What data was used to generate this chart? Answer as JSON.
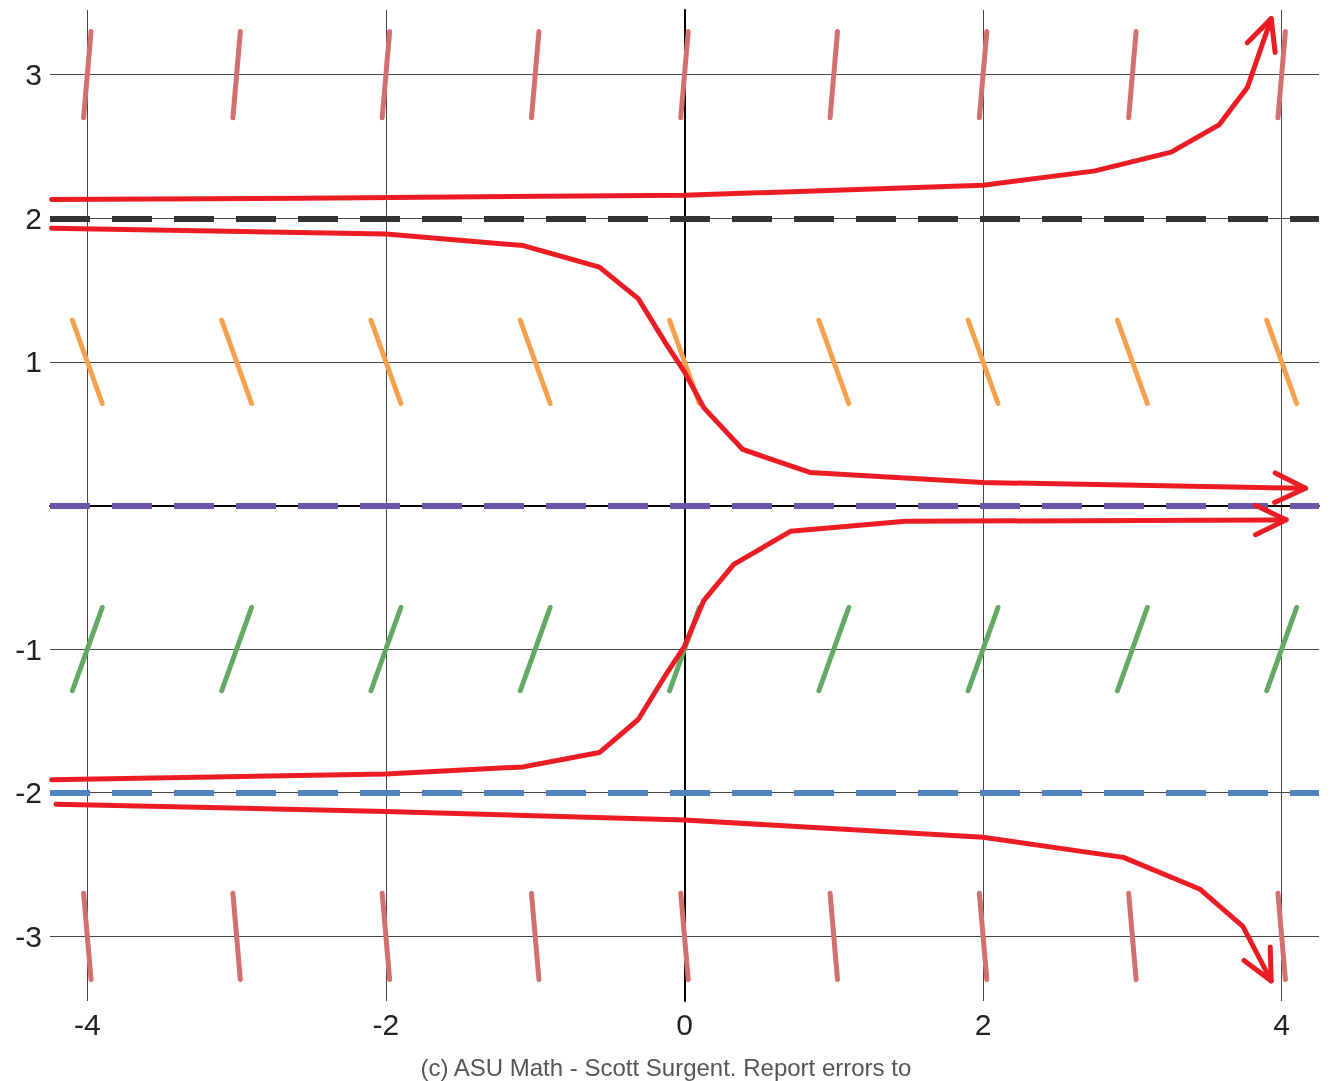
{
  "chart_data": {
    "type": "line",
    "xlim": [
      -4.25,
      4.25
    ],
    "ylim": [
      -3.45,
      3.45
    ],
    "xticks": [
      -4,
      -2,
      0,
      2,
      4
    ],
    "yticks": [
      -3,
      -2,
      -1,
      1,
      2,
      3
    ],
    "grid": true,
    "annotations": [
      "(c) ASU Math - Scott Surgent. Report errors to"
    ],
    "ref_lines": [
      {
        "axis": "y",
        "value": 2,
        "color": "#333333",
        "line_style": "dashed"
      },
      {
        "axis": "y",
        "value": 0,
        "color": "#6b55a8",
        "line_style": "dashed"
      },
      {
        "axis": "y",
        "value": -2,
        "color": "#4f84c0",
        "line_style": "dashed"
      }
    ],
    "series": [
      {
        "color": "#d46f6f",
        "x": [
          -4.025,
          -3.975,
          null,
          -3.025,
          -2.975,
          null,
          -2.025,
          -1.975,
          null,
          -1.025,
          -0.975,
          null,
          -0.025,
          0.025,
          null,
          0.975,
          1.025,
          null,
          1.975,
          2.025,
          null,
          2.975,
          3.025,
          null,
          3.975,
          4.025
        ],
        "values": [
          2.7,
          3.3,
          null,
          2.7,
          3.3,
          null,
          2.7,
          3.3,
          null,
          2.7,
          3.3,
          null,
          2.7,
          3.3,
          null,
          2.7,
          3.3,
          null,
          2.7,
          3.3,
          null,
          2.7,
          3.3,
          null,
          2.7,
          3.3
        ]
      },
      {
        "color": "#f7a14e",
        "x": [
          -4.1,
          -3.9,
          null,
          -3.1,
          -2.9,
          null,
          -2.1,
          -1.9,
          null,
          -1.1,
          -0.9,
          null,
          -0.1,
          0.1,
          null,
          0.9,
          1.1,
          null,
          1.9,
          2.1,
          null,
          2.9,
          3.1,
          null,
          3.9,
          4.1
        ],
        "values": [
          1.29,
          0.71,
          null,
          1.29,
          0.71,
          null,
          1.29,
          0.71,
          null,
          1.29,
          0.71,
          null,
          1.29,
          0.71,
          null,
          1.29,
          0.71,
          null,
          1.29,
          0.71,
          null,
          1.29,
          0.71,
          null,
          1.29,
          0.71
        ]
      },
      {
        "color": "#63a863",
        "x": [
          -4.1,
          -3.9,
          null,
          -3.1,
          -2.9,
          null,
          -2.1,
          -1.9,
          null,
          -1.1,
          -0.9,
          null,
          -0.1,
          0.1,
          null,
          0.9,
          1.1,
          null,
          1.9,
          2.1,
          null,
          2.9,
          3.1,
          null,
          3.9,
          4.1
        ],
        "values": [
          -1.29,
          -0.71,
          null,
          -1.29,
          -0.71,
          null,
          -1.29,
          -0.71,
          null,
          -1.29,
          -0.71,
          null,
          -1.29,
          -0.71,
          null,
          -1.29,
          -0.71,
          null,
          -1.29,
          -0.71,
          null,
          -1.29,
          -0.71,
          null,
          -1.29,
          -0.71
        ]
      },
      {
        "color": "#d46f6f",
        "x": [
          -4.025,
          -3.975,
          null,
          -3.025,
          -2.975,
          null,
          -2.025,
          -1.975,
          null,
          -1.025,
          -0.975,
          null,
          -0.025,
          0.025,
          null,
          0.975,
          1.025,
          null,
          1.975,
          2.025,
          null,
          2.975,
          3.025,
          null,
          3.975,
          4.025
        ],
        "values": [
          -2.7,
          -3.3,
          null,
          -2.7,
          -3.3,
          null,
          -2.7,
          -3.3,
          null,
          -2.7,
          -3.3,
          null,
          -2.7,
          -3.3,
          null,
          -2.7,
          -3.3,
          null,
          -2.7,
          -3.3,
          null,
          -2.7,
          -3.3,
          null,
          -2.7,
          -3.3
        ]
      },
      {
        "color": "#ec1c24",
        "x": [
          -4.24,
          -2.55,
          0,
          2,
          2.75,
          3.26,
          3.58,
          3.77,
          3.93
        ],
        "values": [
          2.13,
          2.14,
          2.16,
          2.23,
          2.33,
          2.46,
          2.65,
          2.91,
          3.39
        ]
      },
      {
        "color": "#ec1c24",
        "x": [
          -4.24,
          -2,
          -1.08,
          -0.57,
          -0.31,
          -0.12,
          0,
          0.13,
          0.39,
          0.84,
          2,
          4.16
        ],
        "values": [
          1.93,
          1.89,
          1.81,
          1.66,
          1.44,
          1.12,
          0.93,
          0.68,
          0.39,
          0.23,
          0.16,
          0.12
        ]
      },
      {
        "color": "#ec1c24",
        "x": [
          -4.24,
          -2,
          -1.08,
          -0.57,
          -0.31,
          -0.12,
          0,
          0.13,
          0.33,
          0.71,
          1.48,
          4.03
        ],
        "values": [
          -1.91,
          -1.87,
          -1.82,
          -1.72,
          -1.49,
          -1.17,
          -0.98,
          -0.66,
          -0.41,
          -0.18,
          -0.11,
          -0.1
        ]
      },
      {
        "color": "#ec1c24",
        "x": [
          -4.21,
          -2,
          0,
          2,
          2.94,
          3.45,
          3.74,
          3.93
        ],
        "values": [
          -2.08,
          -2.13,
          -2.19,
          -2.31,
          -2.45,
          -2.67,
          -2.93,
          -3.31
        ]
      }
    ]
  }
}
